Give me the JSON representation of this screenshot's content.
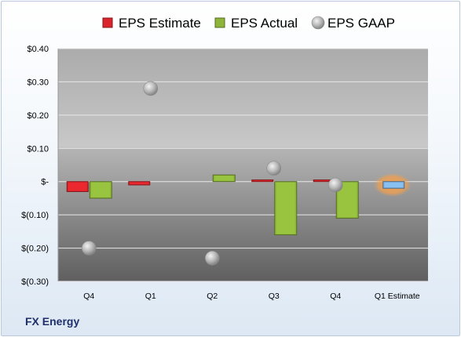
{
  "chart_data": {
    "type": "bar",
    "categories": [
      "Q4",
      "Q1",
      "Q2",
      "Q3",
      "Q4",
      "Q1 Estimate"
    ],
    "series": [
      {
        "name": "EPS Estimate",
        "values": [
          -0.03,
          -0.01,
          null,
          0.005,
          0.005,
          -0.02
        ],
        "color": "#d9252b"
      },
      {
        "name": "EPS Actual",
        "values": [
          -0.05,
          null,
          0.02,
          -0.16,
          -0.11,
          null
        ],
        "color": "#8db53a"
      },
      {
        "name": "EPS GAAP",
        "values": [
          -0.2,
          0.28,
          -0.23,
          0.04,
          -0.01,
          null
        ],
        "color": "#a8a8a8"
      }
    ],
    "y_ticks": [
      {
        "value": 0.4,
        "label": "$0.40"
      },
      {
        "value": 0.3,
        "label": "$0.30"
      },
      {
        "value": 0.2,
        "label": "$0.20"
      },
      {
        "value": 0.1,
        "label": "$0.10"
      },
      {
        "value": 0,
        "label": "$-"
      },
      {
        "value": -0.1,
        "label": "$(0.10)"
      },
      {
        "value": -0.2,
        "label": "$(0.20)"
      },
      {
        "value": -0.3,
        "label": "$(0.30)"
      }
    ],
    "ylim": [
      -0.3,
      0.4
    ],
    "grid": true,
    "legend_position": "top",
    "highlight_color": "#f6a04a",
    "estimate_bar_color": "#7fb2e5"
  },
  "footer": {
    "brand": "FX Energy"
  }
}
